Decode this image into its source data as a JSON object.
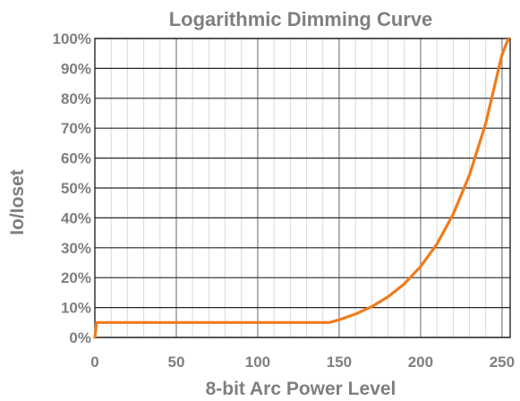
{
  "chart_data": {
    "type": "line",
    "title": "Logarithmic Dimming Curve",
    "xlabel": "8-bit Arc Power Level",
    "ylabel": "Io/Ioset",
    "xlim": [
      0,
      255
    ],
    "ylim": [
      0,
      1
    ],
    "x_ticks": [
      0,
      50,
      100,
      150,
      200,
      250
    ],
    "x_tick_labels": [
      "0",
      "50",
      "100",
      "150",
      "200",
      "250"
    ],
    "y_ticks": [
      0,
      0.1,
      0.2,
      0.3,
      0.4,
      0.5,
      0.6,
      0.7,
      0.8,
      0.9,
      1.0
    ],
    "y_tick_labels": [
      "0%",
      "10%",
      "20%",
      "30%",
      "40%",
      "50%",
      "60%",
      "70%",
      "80%",
      "90%",
      "100%"
    ],
    "grid": true,
    "minor_x_grid_step": 10,
    "series": [
      {
        "color": "#f07c1c",
        "x": [
          0,
          1,
          10,
          50,
          100,
          144,
          150,
          160,
          170,
          180,
          190,
          200,
          210,
          220,
          230,
          240,
          250,
          254
        ],
        "y": [
          0,
          0.05,
          0.05,
          0.05,
          0.05,
          0.05,
          0.059,
          0.078,
          0.103,
          0.136,
          0.179,
          0.237,
          0.312,
          0.412,
          0.543,
          0.716,
          0.946,
          1.0
        ]
      }
    ]
  }
}
